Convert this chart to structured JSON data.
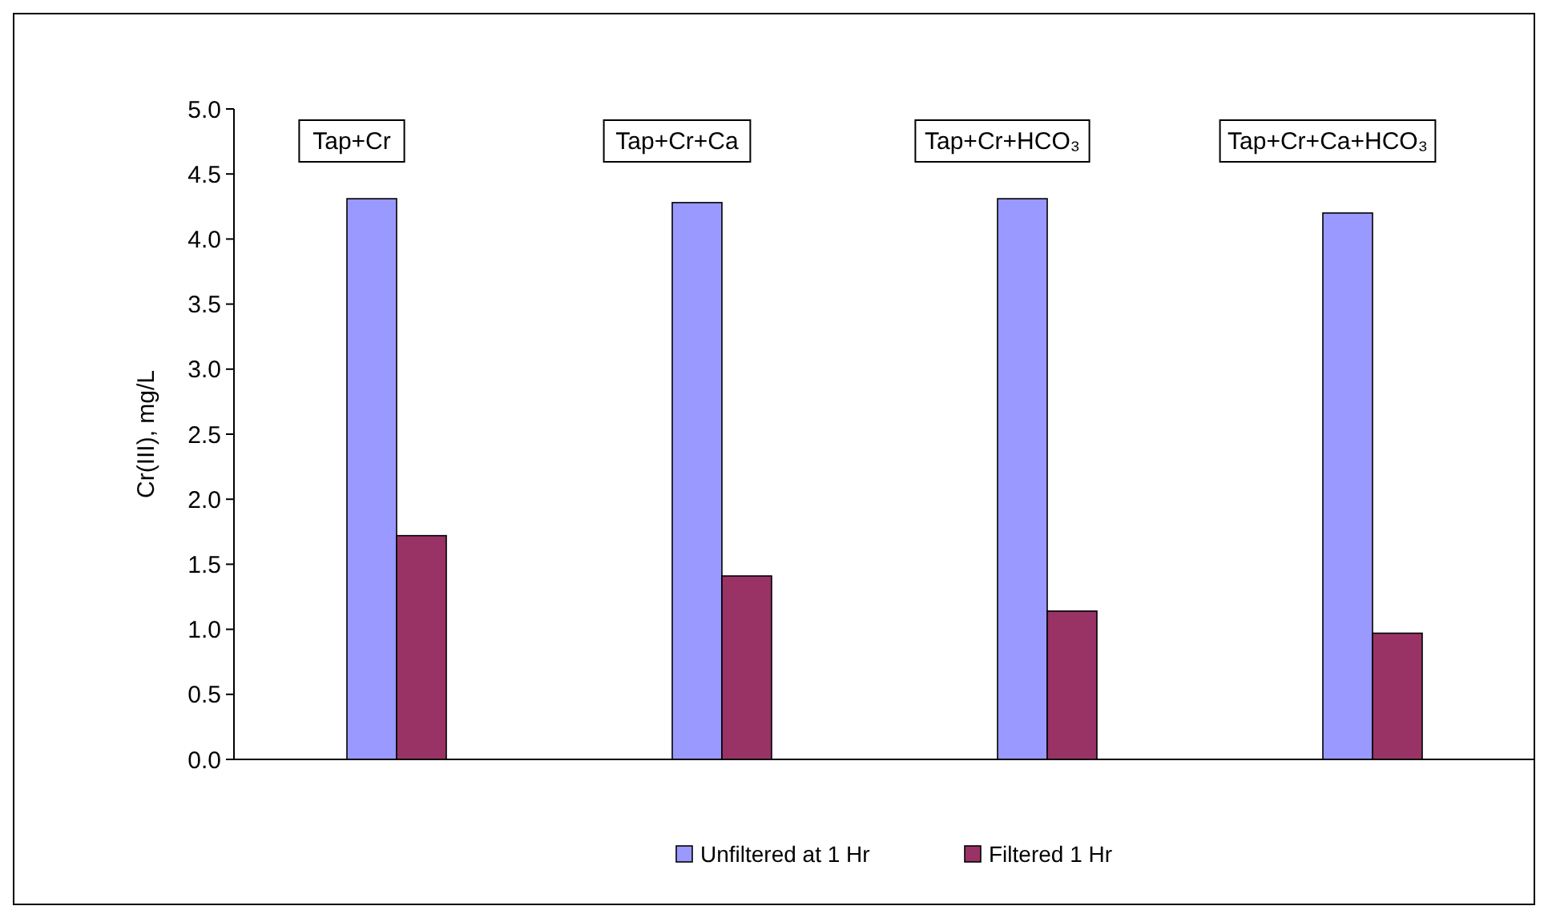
{
  "chart_data": {
    "type": "bar",
    "ylabel": "Cr(III), mg/L",
    "categories": [
      "Tap+Cr",
      "Tap+Cr+Ca",
      "Tap+Cr+HCO₃",
      "Tap+Cr+Ca+HCO₃"
    ],
    "series": [
      {
        "name": "Unfiltered at 1 Hr",
        "color": "#9999ff",
        "values": [
          4.31,
          4.28,
          4.31,
          4.2
        ]
      },
      {
        "name": "Filtered 1 Hr",
        "color": "#993366",
        "values": [
          1.72,
          1.41,
          1.14,
          0.97
        ]
      }
    ],
    "ylim": [
      0,
      5
    ],
    "yticks": [
      {
        "value": 0,
        "label": "0.0"
      },
      0.5,
      {
        "value": 1,
        "label": "1.0"
      },
      1.5,
      {
        "value": 2,
        "label": "2.0"
      },
      2.5,
      {
        "value": 3,
        "label": "3.0"
      },
      3.5,
      {
        "value": 4,
        "label": "4.0"
      },
      4.5,
      {
        "value": 5,
        "label": "5.0"
      }
    ],
    "grid": false,
    "legend": "bottom"
  }
}
